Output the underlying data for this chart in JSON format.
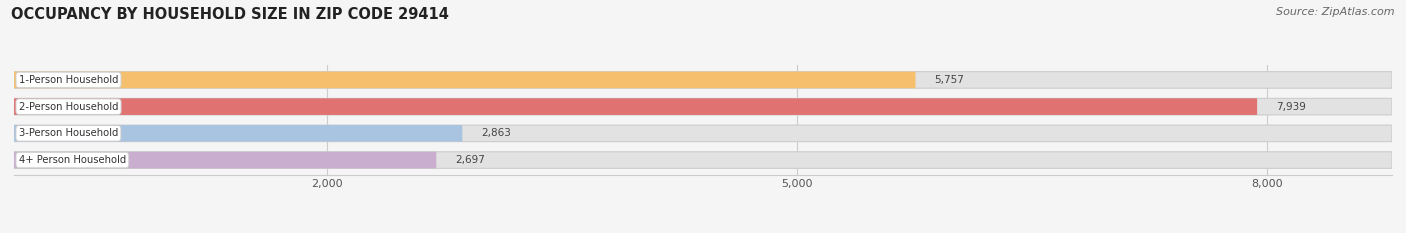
{
  "title": "OCCUPANCY BY HOUSEHOLD SIZE IN ZIP CODE 29414",
  "source": "Source: ZipAtlas.com",
  "categories": [
    "1-Person Household",
    "2-Person Household",
    "3-Person Household",
    "4+ Person Household"
  ],
  "values": [
    5757,
    7939,
    2863,
    2697
  ],
  "bar_colors": [
    "#F5BF6E",
    "#E07272",
    "#A8C4E0",
    "#C9AECF"
  ],
  "bar_edge_colors": [
    "#D4983A",
    "#CC5555",
    "#6A9AC0",
    "#9A7EAF"
  ],
  "xlim": [
    0,
    8800
  ],
  "xticks": [
    2000,
    5000,
    8000
  ],
  "background_color": "#F5F5F5",
  "bar_background_color": "#E2E2E2",
  "title_fontsize": 10.5,
  "source_fontsize": 8,
  "bar_height": 0.62,
  "figsize": [
    14.06,
    2.33
  ],
  "dpi": 100
}
